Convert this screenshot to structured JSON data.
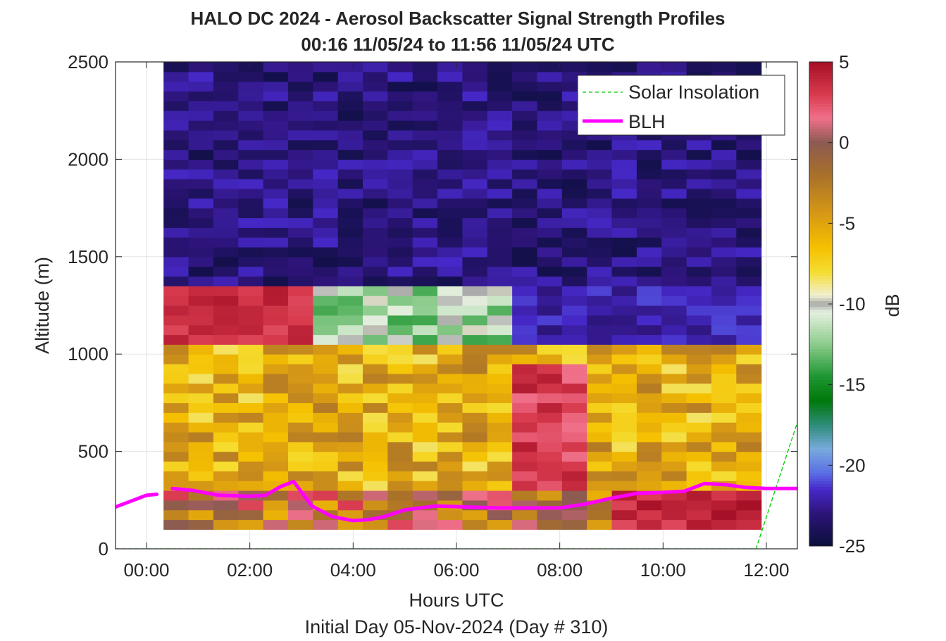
{
  "chart_data": {
    "type": "heatmap",
    "title": "HALO DC 2024 - Aerosol Backscatter Signal Strength Profiles",
    "subtitle": "00:16 11/05/24 to 11:56 11/05/24  UTC",
    "xlabel": "Hours UTC",
    "xlabel2": "Initial Day 05-Nov-2024 (Day # 310)",
    "ylabel": "Altitude (m)",
    "colorbar_label": "dB",
    "xlim": [
      -0.6,
      12.6
    ],
    "ylim": [
      0,
      2500
    ],
    "clim": [
      -25,
      5
    ],
    "grid": true,
    "legend_position": "top-right",
    "x_ticks": [
      {
        "value": 0,
        "label": "00:00"
      },
      {
        "value": 2,
        "label": "02:00"
      },
      {
        "value": 4,
        "label": "04:00"
      },
      {
        "value": 6,
        "label": "06:00"
      },
      {
        "value": 8,
        "label": "08:00"
      },
      {
        "value": 10,
        "label": "10:00"
      },
      {
        "value": 12,
        "label": "12:00"
      }
    ],
    "y_ticks": [
      {
        "value": 0,
        "label": "0"
      },
      {
        "value": 500,
        "label": "500"
      },
      {
        "value": 1000,
        "label": "1000"
      },
      {
        "value": 1500,
        "label": "1500"
      },
      {
        "value": 2000,
        "label": "2000"
      },
      {
        "value": 2500,
        "label": "2500"
      }
    ],
    "colorbar_ticks": [
      {
        "value": 5,
        "label": "5"
      },
      {
        "value": 0,
        "label": "0"
      },
      {
        "value": -5,
        "label": "-5"
      },
      {
        "value": -10,
        "label": "-10"
      },
      {
        "value": -15,
        "label": "-15"
      },
      {
        "value": -20,
        "label": "-20"
      },
      {
        "value": -25,
        "label": "-25"
      }
    ],
    "colormap": [
      {
        "v": 5,
        "c": "#a50f26"
      },
      {
        "v": 3,
        "c": "#d83a4d"
      },
      {
        "v": 1.5,
        "c": "#f0708a"
      },
      {
        "v": 0,
        "c": "#8c5a52"
      },
      {
        "v": -2,
        "c": "#a8702a"
      },
      {
        "v": -4.5,
        "c": "#d89a14"
      },
      {
        "v": -6.5,
        "c": "#f5c000"
      },
      {
        "v": -8,
        "c": "#f5dc30"
      },
      {
        "v": -9.5,
        "c": "#f0f0d2"
      },
      {
        "v": -10,
        "c": "#a8a8a8"
      },
      {
        "v": -10.5,
        "c": "#e6f0e0"
      },
      {
        "v": -12.5,
        "c": "#8ccc8c"
      },
      {
        "v": -14.5,
        "c": "#1e9632"
      },
      {
        "v": -16,
        "c": "#00780a"
      },
      {
        "v": -17.5,
        "c": "#2d8c7a"
      },
      {
        "v": -19,
        "c": "#78aadc"
      },
      {
        "v": -20.5,
        "c": "#5a6ee6"
      },
      {
        "v": -21.5,
        "c": "#4628c8"
      },
      {
        "v": -23,
        "c": "#2d1478"
      },
      {
        "v": -25,
        "c": "#0a0f3c"
      }
    ],
    "heatmap": {
      "x_start": 0.33,
      "x_end": 11.9,
      "y_start": 100,
      "y_end": 2500,
      "altitude_bin_m": 50,
      "layers": [
        {
          "alt_range": [
            1350,
            2500
          ],
          "db_range": [
            -24.5,
            -21.5
          ]
        },
        {
          "alt_range": [
            1050,
            1350
          ],
          "db_range": [
            2.5,
            4.5
          ],
          "hours": [
            0.33,
            3.3
          ]
        },
        {
          "alt_range": [
            1050,
            1350
          ],
          "db_range": [
            -14,
            -9.5
          ],
          "hours": [
            3.3,
            7.0
          ]
        },
        {
          "alt_range": [
            1050,
            1350
          ],
          "db_range": [
            -23,
            -21
          ],
          "hours": [
            7.0,
            11.9
          ]
        },
        {
          "alt_range": [
            300,
            1050
          ],
          "db_range": [
            -8.5,
            -2.5
          ]
        },
        {
          "alt_range": [
            300,
            950
          ],
          "db_range": [
            1.5,
            4.5
          ],
          "hours": [
            7.0,
            8.6
          ]
        },
        {
          "alt_range": [
            100,
            300
          ],
          "db_range": [
            -6,
            3
          ],
          "hours": [
            0.33,
            8.8
          ]
        },
        {
          "alt_range": [
            100,
            300
          ],
          "db_range": [
            2.5,
            5
          ],
          "hours": [
            8.8,
            11.9
          ]
        }
      ]
    },
    "series": [
      {
        "name": "Solar Insolation",
        "style": "dashed",
        "color": "#00cc00",
        "x": [
          -0.6,
          11.8,
          12.6
        ],
        "y": [
          0,
          0,
          650
        ]
      },
      {
        "name": "BLH",
        "style": "solid",
        "color": "#ff00ff",
        "segments": [
          {
            "x": [
              -0.6,
              -0.3,
              0.0,
              0.2
            ],
            "y": [
              215,
              245,
              275,
              280
            ]
          },
          {
            "x": [
              0.5,
              0.9,
              1.4,
              2.0,
              2.3,
              2.6,
              2.85,
              3.2,
              3.6,
              4.0,
              4.3,
              4.6,
              5.0,
              5.6,
              6.2,
              6.8,
              7.4,
              8.0,
              8.5,
              9.0,
              9.5,
              10.0,
              10.4,
              10.8,
              11.2,
              11.6,
              12.0,
              12.6
            ],
            "y": [
              310,
              300,
              275,
              270,
              275,
              320,
              345,
              220,
              165,
              145,
              150,
              165,
              200,
              220,
              215,
              210,
              210,
              210,
              230,
              260,
              285,
              290,
              295,
              335,
              330,
              315,
              310,
              310
            ]
          }
        ]
      }
    ]
  }
}
